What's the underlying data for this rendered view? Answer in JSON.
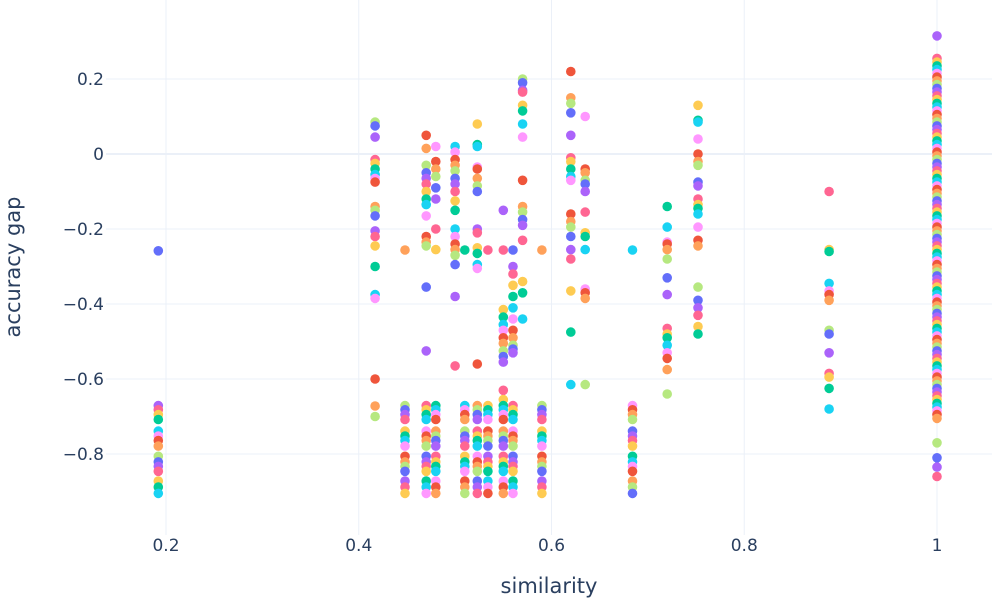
{
  "chart_data": {
    "type": "scatter",
    "title": "",
    "xlabel": "similarity",
    "ylabel": "accuracy gap",
    "xlim": [
      0.12,
      1.04
    ],
    "ylim": [
      -1.02,
      0.33
    ],
    "grid": true,
    "legend": "none",
    "xticks": [
      {
        "v": 0.2,
        "label": "0.2"
      },
      {
        "v": 0.4,
        "label": "0.4"
      },
      {
        "v": 0.6,
        "label": "0.6"
      },
      {
        "v": 0.8,
        "label": "0.8"
      },
      {
        "v": 1,
        "label": "1"
      }
    ],
    "yticks": [
      {
        "v": 0.2,
        "label": "0.2"
      },
      {
        "v": 0,
        "label": "0"
      },
      {
        "v": -0.2,
        "label": "−0.2"
      },
      {
        "v": -0.4,
        "label": "−0.4"
      },
      {
        "v": -0.6,
        "label": "−0.6"
      },
      {
        "v": -0.8,
        "label": "−0.8"
      }
    ],
    "palette": [
      "#636efa",
      "#EF553B",
      "#00cc96",
      "#ab63fa",
      "#FFA15A",
      "#19d3f3",
      "#FF6692",
      "#B6E880",
      "#FF97FF",
      "#FECB52"
    ],
    "columns": [
      {
        "x": 0.192,
        "y": [
          -0.258,
          -0.671,
          -0.682,
          -0.695,
          -0.708,
          -0.739,
          -0.752,
          -0.764,
          -0.779,
          -0.806,
          -0.821,
          -0.833,
          -0.846,
          -0.872,
          -0.888,
          -0.905
        ]
      },
      {
        "x": 0.417,
        "y": [
          0.085,
          0.075,
          0.045,
          -0.015,
          -0.025,
          -0.04,
          -0.055,
          -0.065,
          -0.075,
          -0.14,
          -0.15,
          -0.165,
          -0.205,
          -0.22,
          -0.245,
          -0.3,
          -0.375,
          -0.385,
          -0.6,
          -0.672,
          -0.7
        ]
      },
      {
        "x": 0.448,
        "y": [
          -0.256,
          -0.671,
          -0.682,
          -0.695,
          -0.708,
          -0.739,
          -0.752,
          -0.764,
          -0.779,
          -0.806,
          -0.821,
          -0.833,
          -0.846,
          -0.872,
          -0.888,
          -0.905
        ]
      },
      {
        "x": 0.47,
        "y": [
          0.05,
          0.015,
          -0.03,
          -0.05,
          -0.065,
          -0.08,
          -0.1,
          -0.12,
          -0.135,
          -0.165,
          -0.22,
          -0.235,
          -0.245,
          -0.355,
          -0.525,
          -0.671,
          -0.682,
          -0.695,
          -0.708,
          -0.739,
          -0.752,
          -0.764,
          -0.779,
          -0.806,
          -0.821,
          -0.833,
          -0.846,
          -0.872,
          -0.888,
          -0.905
        ]
      },
      {
        "x": 0.48,
        "y": [
          0.02,
          -0.02,
          -0.04,
          -0.06,
          -0.09,
          -0.12,
          -0.2,
          -0.255,
          -0.671,
          -0.682,
          -0.695,
          -0.708,
          -0.739,
          -0.752,
          -0.764,
          -0.779,
          -0.806,
          -0.821,
          -0.833,
          -0.846,
          -0.872,
          -0.888,
          -0.905
        ]
      },
      {
        "x": 0.5,
        "y": [
          0.02,
          0.005,
          -0.015,
          -0.03,
          -0.045,
          -0.065,
          -0.08,
          -0.1,
          -0.125,
          -0.15,
          -0.2,
          -0.22,
          -0.24,
          -0.255,
          -0.27,
          -0.295,
          -0.38,
          -0.565
        ]
      },
      {
        "x": 0.51,
        "y": [
          -0.256,
          -0.671,
          -0.682,
          -0.695,
          -0.708,
          -0.739,
          -0.752,
          -0.764,
          -0.779,
          -0.806,
          -0.821,
          -0.833,
          -0.846,
          -0.872,
          -0.888,
          -0.905
        ]
      },
      {
        "x": 0.523,
        "y": [
          0.08,
          0.025,
          0.02,
          -0.035,
          -0.04,
          -0.065,
          -0.085,
          -0.1,
          -0.2,
          -0.21,
          -0.25,
          -0.265,
          -0.295,
          -0.305,
          -0.56,
          -0.671,
          -0.682,
          -0.695,
          -0.708,
          -0.739,
          -0.752,
          -0.764,
          -0.779,
          -0.806,
          -0.821,
          -0.833,
          -0.846,
          -0.872,
          -0.888,
          -0.905
        ]
      },
      {
        "x": 0.534,
        "y": [
          -0.256,
          -0.671,
          -0.682,
          -0.695,
          -0.708,
          -0.739,
          -0.752,
          -0.764,
          -0.779,
          -0.806,
          -0.821,
          -0.833,
          -0.846,
          -0.872,
          -0.888,
          -0.905
        ]
      },
      {
        "x": 0.55,
        "y": [
          -0.15,
          -0.256,
          -0.415,
          -0.435,
          -0.455,
          -0.47,
          -0.49,
          -0.505,
          -0.525,
          -0.54,
          -0.555,
          -0.63,
          -0.655,
          -0.671,
          -0.682,
          -0.695,
          -0.708,
          -0.739,
          -0.752,
          -0.764,
          -0.779,
          -0.806,
          -0.821,
          -0.833,
          -0.846,
          -0.872,
          -0.888,
          -0.905
        ]
      },
      {
        "x": 0.56,
        "y": [
          -0.256,
          -0.3,
          -0.32,
          -0.35,
          -0.38,
          -0.41,
          -0.44,
          -0.47,
          -0.49,
          -0.51,
          -0.52,
          -0.53,
          -0.671,
          -0.682,
          -0.695,
          -0.708,
          -0.739,
          -0.752,
          -0.764,
          -0.779,
          -0.806,
          -0.821,
          -0.833,
          -0.846,
          -0.872,
          -0.888,
          -0.905
        ]
      },
      {
        "x": 0.57,
        "y": [
          0.2,
          0.19,
          0.17,
          0.165,
          0.13,
          0.115,
          0.08,
          0.045,
          -0.07,
          -0.14,
          -0.155,
          -0.175,
          -0.19,
          -0.23,
          -0.34,
          -0.37,
          -0.44
        ]
      },
      {
        "x": 0.59,
        "y": [
          -0.256,
          -0.671,
          -0.682,
          -0.695,
          -0.708,
          -0.739,
          -0.752,
          -0.764,
          -0.779,
          -0.806,
          -0.821,
          -0.833,
          -0.846,
          -0.872,
          -0.888,
          -0.905
        ]
      },
      {
        "x": 0.62,
        "y": [
          0.22,
          0.15,
          0.135,
          0.11,
          0.05,
          -0.01,
          -0.02,
          -0.04,
          -0.06,
          -0.07,
          -0.16,
          -0.18,
          -0.195,
          -0.22,
          -0.255,
          -0.28,
          -0.365,
          -0.475,
          -0.615
        ]
      },
      {
        "x": 0.635,
        "y": [
          0.1,
          -0.04,
          -0.05,
          -0.07,
          -0.08,
          -0.1,
          -0.155,
          -0.21,
          -0.22,
          -0.255,
          -0.36,
          -0.37,
          -0.385,
          -0.615
        ]
      },
      {
        "x": 0.684,
        "y": [
          -0.256,
          -0.671,
          -0.682,
          -0.695,
          -0.708,
          -0.739,
          -0.752,
          -0.764,
          -0.779,
          -0.806,
          -0.821,
          -0.833,
          -0.846,
          -0.872,
          -0.888,
          -0.905
        ]
      },
      {
        "x": 0.72,
        "y": [
          -0.14,
          -0.195,
          -0.235,
          -0.24,
          -0.255,
          -0.28,
          -0.33,
          -0.375,
          -0.465,
          -0.48,
          -0.49,
          -0.51,
          -0.53,
          -0.545,
          -0.575,
          -0.64
        ]
      },
      {
        "x": 0.752,
        "y": [
          0.13,
          0.09,
          0.085,
          0.04,
          0,
          -0.02,
          -0.03,
          -0.075,
          -0.085,
          -0.12,
          -0.135,
          -0.145,
          -0.16,
          -0.195,
          -0.23,
          -0.245,
          -0.355,
          -0.39,
          -0.41,
          -0.43,
          -0.46,
          -0.48
        ]
      },
      {
        "x": 0.888,
        "y": [
          -0.1,
          -0.255,
          -0.26,
          -0.345,
          -0.365,
          -0.375,
          -0.39,
          -0.47,
          -0.48,
          -0.53,
          -0.585,
          -0.595,
          -0.625,
          -0.68
        ]
      },
      {
        "x": 1.0,
        "y": [
          0.315,
          0.255,
          0.245,
          0.235,
          0.225,
          0.215,
          0.205,
          0.195,
          0.185,
          0.175,
          0.165,
          0.155,
          0.145,
          0.135,
          0.125,
          0.115,
          0.105,
          0.095,
          0.085,
          0.075,
          0.065,
          0.055,
          0.045,
          0.035,
          0.025,
          0.015,
          0.005,
          -0.005,
          -0.015,
          -0.025,
          -0.035,
          -0.045,
          -0.055,
          -0.065,
          -0.075,
          -0.085,
          -0.095,
          -0.105,
          -0.115,
          -0.125,
          -0.135,
          -0.145,
          -0.155,
          -0.165,
          -0.175,
          -0.185,
          -0.195,
          -0.205,
          -0.215,
          -0.225,
          -0.235,
          -0.245,
          -0.255,
          -0.265,
          -0.275,
          -0.285,
          -0.295,
          -0.305,
          -0.315,
          -0.325,
          -0.335,
          -0.345,
          -0.355,
          -0.365,
          -0.375,
          -0.385,
          -0.395,
          -0.405,
          -0.415,
          -0.425,
          -0.435,
          -0.445,
          -0.455,
          -0.465,
          -0.475,
          -0.485,
          -0.495,
          -0.505,
          -0.515,
          -0.525,
          -0.535,
          -0.545,
          -0.555,
          -0.565,
          -0.575,
          -0.585,
          -0.595,
          -0.605,
          -0.615,
          -0.625,
          -0.635,
          -0.645,
          -0.655,
          -0.665,
          -0.675,
          -0.685,
          -0.695,
          -0.705,
          -0.77,
          -0.81,
          -0.835,
          -0.86
        ]
      }
    ]
  }
}
